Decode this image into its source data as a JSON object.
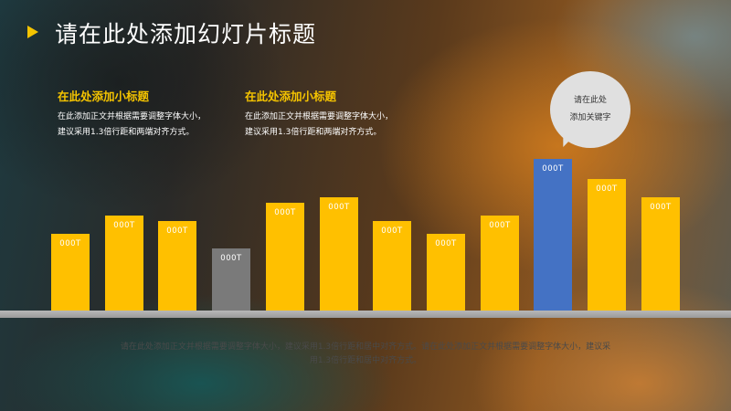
{
  "title": "请在此处添加幻灯片标题",
  "blocks": [
    {
      "heading": "在此处添加小标题",
      "line1": "在此添加正文并根据需要调整字体大小，",
      "line2": "建议采用1.3倍行距和两端对齐方式。"
    },
    {
      "heading": "在此处添加小标题",
      "line1": "在此添加正文并根据需要调整字体大小，",
      "line2": "建议采用1.3倍行距和两端对齐方式。"
    }
  ],
  "bubble": {
    "line1": "请在此处",
    "line2": "添加关键字"
  },
  "bars": [
    {
      "label": "000T",
      "value": 0.42,
      "color": "#ffc000"
    },
    {
      "label": "000T",
      "value": 0.52,
      "color": "#ffc000"
    },
    {
      "label": "000T",
      "value": 0.49,
      "color": "#ffc000"
    },
    {
      "label": "000T",
      "value": 0.34,
      "color": "#7a7a7a"
    },
    {
      "label": "000T",
      "value": 0.59,
      "color": "#ffc000"
    },
    {
      "label": "000T",
      "value": 0.62,
      "color": "#ffc000"
    },
    {
      "label": "000T",
      "value": 0.49,
      "color": "#ffc000"
    },
    {
      "label": "000T",
      "value": 0.42,
      "color": "#ffc000"
    },
    {
      "label": "000T",
      "value": 0.52,
      "color": "#ffc000"
    },
    {
      "label": "000T",
      "value": 0.83,
      "color": "#4472c4"
    },
    {
      "label": "000T",
      "value": 0.72,
      "color": "#ffc000"
    },
    {
      "label": "000T",
      "value": 0.62,
      "color": "#ffc000"
    }
  ],
  "footer": {
    "line1": "请在此处添加正文并根据需要调整字体大小，建议采用1.3倍行距和居中对齐方式。请在此处添加正文并根据需要调整字体大小，建议采",
    "line2": "用1.3倍行距和居中对齐方式。"
  },
  "colors": {
    "accent": "#f5c400",
    "bar_default": "#ffc000",
    "bar_highlight": "#4472c4",
    "bar_muted": "#7a7a7a"
  }
}
